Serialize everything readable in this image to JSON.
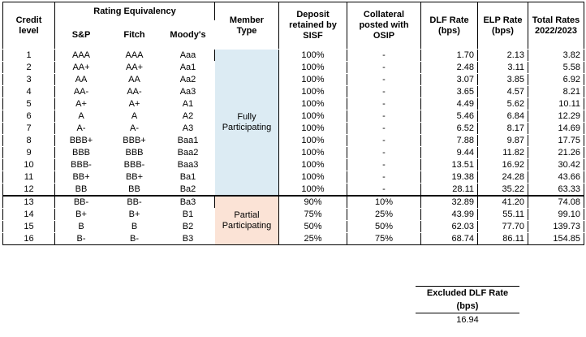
{
  "headers": {
    "credit_level": [
      "Credit",
      "level"
    ],
    "rating_equivalency": "Rating Equivalency",
    "sp": "S&P",
    "fitch": "Fitch",
    "moodys": "Moody's",
    "member_type": [
      "Member",
      "Type"
    ],
    "deposit": [
      "Deposit",
      "retained by",
      "SISF"
    ],
    "collateral": [
      "Collateral",
      "posted with",
      "OSIP"
    ],
    "dlf": [
      "DLF Rate",
      "(bps)"
    ],
    "elp": [
      "ELP Rate",
      "(bps)"
    ],
    "total": [
      "Total Rates",
      "2022/2023"
    ]
  },
  "groups": [
    {
      "member_type": [
        "Fully",
        "Participating"
      ],
      "color": "#dcebf3"
    },
    {
      "member_type": [
        "Partial",
        "Participating"
      ],
      "color": "#fbe3d6"
    }
  ],
  "rows": [
    {
      "level": "1",
      "sp": "AAA",
      "fitch": "AAA",
      "moodys": "Aaa",
      "deposit": "100%",
      "collateral": "-",
      "dlf": "1.70",
      "elp": "2.13",
      "total": "3.82"
    },
    {
      "level": "2",
      "sp": "AA+",
      "fitch": "AA+",
      "moodys": "Aa1",
      "deposit": "100%",
      "collateral": "-",
      "dlf": "2.48",
      "elp": "3.11",
      "total": "5.58"
    },
    {
      "level": "3",
      "sp": "AA",
      "fitch": "AA",
      "moodys": "Aa2",
      "deposit": "100%",
      "collateral": "-",
      "dlf": "3.07",
      "elp": "3.85",
      "total": "6.92"
    },
    {
      "level": "4",
      "sp": "AA-",
      "fitch": "AA-",
      "moodys": "Aa3",
      "deposit": "100%",
      "collateral": "-",
      "dlf": "3.65",
      "elp": "4.57",
      "total": "8.21"
    },
    {
      "level": "5",
      "sp": "A+",
      "fitch": "A+",
      "moodys": "A1",
      "deposit": "100%",
      "collateral": "-",
      "dlf": "4.49",
      "elp": "5.62",
      "total": "10.11"
    },
    {
      "level": "6",
      "sp": "A",
      "fitch": "A",
      "moodys": "A2",
      "deposit": "100%",
      "collateral": "-",
      "dlf": "5.46",
      "elp": "6.84",
      "total": "12.29"
    },
    {
      "level": "7",
      "sp": "A-",
      "fitch": "A-",
      "moodys": "A3",
      "deposit": "100%",
      "collateral": "-",
      "dlf": "6.52",
      "elp": "8.17",
      "total": "14.69"
    },
    {
      "level": "8",
      "sp": "BBB+",
      "fitch": "BBB+",
      "moodys": "Baa1",
      "deposit": "100%",
      "collateral": "-",
      "dlf": "7.88",
      "elp": "9.87",
      "total": "17.75"
    },
    {
      "level": "9",
      "sp": "BBB",
      "fitch": "BBB",
      "moodys": "Baa2",
      "deposit": "100%",
      "collateral": "-",
      "dlf": "9.44",
      "elp": "11.82",
      "total": "21.26"
    },
    {
      "level": "10",
      "sp": "BBB-",
      "fitch": "BBB-",
      "moodys": "Baa3",
      "deposit": "100%",
      "collateral": "-",
      "dlf": "13.51",
      "elp": "16.92",
      "total": "30.42"
    },
    {
      "level": "11",
      "sp": "BB+",
      "fitch": "BB+",
      "moodys": "Ba1",
      "deposit": "100%",
      "collateral": "-",
      "dlf": "19.38",
      "elp": "24.28",
      "total": "43.66"
    },
    {
      "level": "12",
      "sp": "BB",
      "fitch": "BB",
      "moodys": "Ba2",
      "deposit": "100%",
      "collateral": "-",
      "dlf": "28.11",
      "elp": "35.22",
      "total": "63.33"
    },
    {
      "level": "13",
      "sp": "BB-",
      "fitch": "BB-",
      "moodys": "Ba3",
      "deposit": "90%",
      "collateral": "10%",
      "dlf": "32.89",
      "elp": "41.20",
      "total": "74.08"
    },
    {
      "level": "14",
      "sp": "B+",
      "fitch": "B+",
      "moodys": "B1",
      "deposit": "75%",
      "collateral": "25%",
      "dlf": "43.99",
      "elp": "55.11",
      "total": "99.10"
    },
    {
      "level": "15",
      "sp": "B",
      "fitch": "B",
      "moodys": "B2",
      "deposit": "50%",
      "collateral": "50%",
      "dlf": "62.03",
      "elp": "77.70",
      "total": "139.73"
    },
    {
      "level": "16",
      "sp": "B-",
      "fitch": "B-",
      "moodys": "B3",
      "deposit": "25%",
      "collateral": "75%",
      "dlf": "68.74",
      "elp": "86.11",
      "total": "154.85"
    }
  ],
  "excluded": {
    "label": [
      "Excluded DLF Rate",
      "(bps)"
    ],
    "value": "16.94"
  }
}
